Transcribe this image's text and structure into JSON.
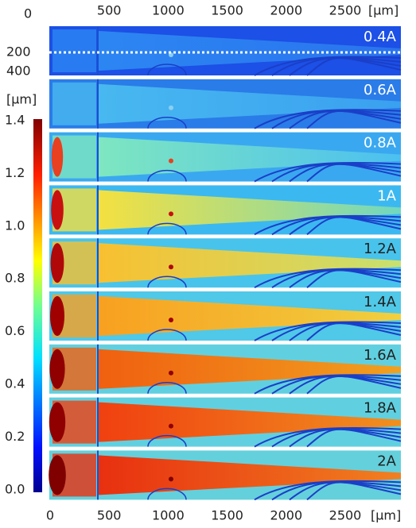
{
  "top_axis": {
    "ticks": [
      "500",
      "1000",
      "1500",
      "2000",
      "2500"
    ],
    "unit": "[μm]"
  },
  "side_axis": {
    "ticks": [
      "0",
      "200",
      "400"
    ]
  },
  "colorbar": {
    "unit": "[μm]",
    "ticks": [
      "1.4",
      "1.2",
      "1.0",
      "0.8",
      "0.6",
      "0.4",
      "0.2",
      "0.0"
    ]
  },
  "panels": [
    "0.4A",
    "0.6A",
    "0.8A",
    "1A",
    "1.2A",
    "1.4A",
    "1.6A",
    "1.8A",
    "2A"
  ],
  "bottom_axis": {
    "ticks": [
      "0",
      "500",
      "1000",
      "1500",
      "2000",
      "2500"
    ],
    "unit": "[μm]"
  }
}
